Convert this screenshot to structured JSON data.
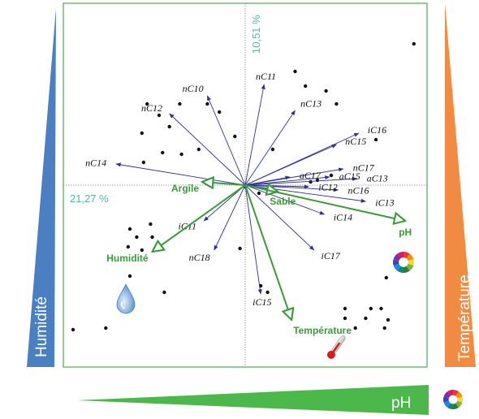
{
  "chart_data": {
    "type": "scatter",
    "title": "",
    "axis1_label": "21,27 %",
    "axis2_label": "10,51 %",
    "xlim": [
      -1,
      1
    ],
    "ylim": [
      -1,
      1
    ],
    "grid": false,
    "points": [
      [
        0.98,
        0.87
      ],
      [
        0.29,
        0.7
      ],
      [
        0.35,
        0.61
      ],
      [
        0.47,
        0.58
      ],
      [
        0.53,
        0.5
      ],
      [
        -0.57,
        0.5
      ],
      [
        -0.38,
        0.5
      ],
      [
        -0.22,
        0.5
      ],
      [
        -0.15,
        0.45
      ],
      [
        -0.5,
        0.43
      ],
      [
        -0.44,
        0.36
      ],
      [
        -0.6,
        0.32
      ],
      [
        -0.06,
        0.3
      ],
      [
        0.16,
        0.22
      ],
      [
        0.76,
        0.28
      ],
      [
        -0.48,
        0.2
      ],
      [
        -0.37,
        0.19
      ],
      [
        -0.27,
        0.22
      ],
      [
        -0.59,
        0.14
      ],
      [
        0.5,
        0.06
      ],
      [
        0.42,
        0.03
      ],
      [
        0.38,
        0.02
      ],
      [
        0.0,
        -0.01
      ],
      [
        0.08,
        -0.05
      ],
      [
        -0.55,
        -0.24
      ],
      [
        -0.67,
        -0.27
      ],
      [
        -0.63,
        -0.32
      ],
      [
        -0.54,
        -0.32
      ],
      [
        -0.68,
        -0.38
      ],
      [
        -0.6,
        -0.4
      ],
      [
        -0.03,
        -0.39
      ],
      [
        -0.67,
        -0.56
      ],
      [
        0.82,
        -0.57
      ],
      [
        0.09,
        -0.62
      ],
      [
        0.13,
        -0.66
      ],
      [
        -0.47,
        -0.66
      ],
      [
        0.58,
        -0.76
      ],
      [
        0.73,
        -0.76
      ],
      [
        0.79,
        -0.76
      ],
      [
        0.7,
        -0.82
      ],
      [
        0.58,
        -0.82
      ],
      [
        0.83,
        -0.83
      ],
      [
        0.81,
        -0.88
      ],
      [
        0.64,
        -0.88
      ],
      [
        -1.0,
        -0.89
      ],
      [
        -0.81,
        -0.88
      ]
    ],
    "fatty_acids": [
      {
        "name": "nC10",
        "x": -0.22,
        "y": 0.55
      },
      {
        "name": "nC11",
        "x": 0.11,
        "y": 0.62
      },
      {
        "name": "nC12",
        "x": -0.44,
        "y": 0.44
      },
      {
        "name": "nC13",
        "x": 0.29,
        "y": 0.46
      },
      {
        "name": "nC14",
        "x": -0.75,
        "y": 0.13
      },
      {
        "name": "nC15",
        "x": 0.53,
        "y": 0.25
      },
      {
        "name": "nC16",
        "x": 0.54,
        "y": -0.03
      },
      {
        "name": "nC17",
        "x": 0.57,
        "y": 0.1
      },
      {
        "name": "aC13",
        "x": 0.65,
        "y": 0.04
      },
      {
        "name": "aC15",
        "x": 0.49,
        "y": 0.05
      },
      {
        "name": "aC17",
        "x": 0.26,
        "y": 0.05
      },
      {
        "name": "iC11",
        "x": -0.24,
        "y": -0.22
      },
      {
        "name": "iC12",
        "x": 0.37,
        "y": -0.01
      },
      {
        "name": "iC13",
        "x": 0.7,
        "y": -0.1
      },
      {
        "name": "iC14",
        "x": 0.46,
        "y": -0.18
      },
      {
        "name": "iC15",
        "x": 0.09,
        "y": -0.67
      },
      {
        "name": "iC16",
        "x": 0.66,
        "y": 0.32
      },
      {
        "name": "iC17",
        "x": 0.4,
        "y": -0.4
      },
      {
        "name": "nC18",
        "x": -0.18,
        "y": -0.4
      }
    ],
    "environmental_vectors": [
      {
        "name": "Argile",
        "x": -0.25,
        "y": 0.02
      },
      {
        "name": "Sable",
        "x": 0.19,
        "y": -0.04
      },
      {
        "name": "pH",
        "x": 0.93,
        "y": -0.22
      },
      {
        "name": "Humidité",
        "x": -0.54,
        "y": -0.41
      },
      {
        "name": "Température",
        "x": 0.27,
        "y": -0.83
      }
    ],
    "gradient_labels": {
      "left": "Humidité",
      "right": "Température",
      "bottom": "pH"
    },
    "colors": {
      "point": "#111111",
      "fatty_acid_arrow": "#2e3192",
      "environment_arrow": "#3c9a3c",
      "humidity_bar": "#4a7fc1",
      "temperature_bar": "#f28b42",
      "ph_bar": "#4cb84c",
      "frame": "#55a355",
      "axis_percent": "#4fb8a4"
    },
    "icons": {
      "humidity": "water-drop-icon",
      "temperature": "thermometer-icon",
      "ph": "ph-color-wheel-icon"
    }
  }
}
